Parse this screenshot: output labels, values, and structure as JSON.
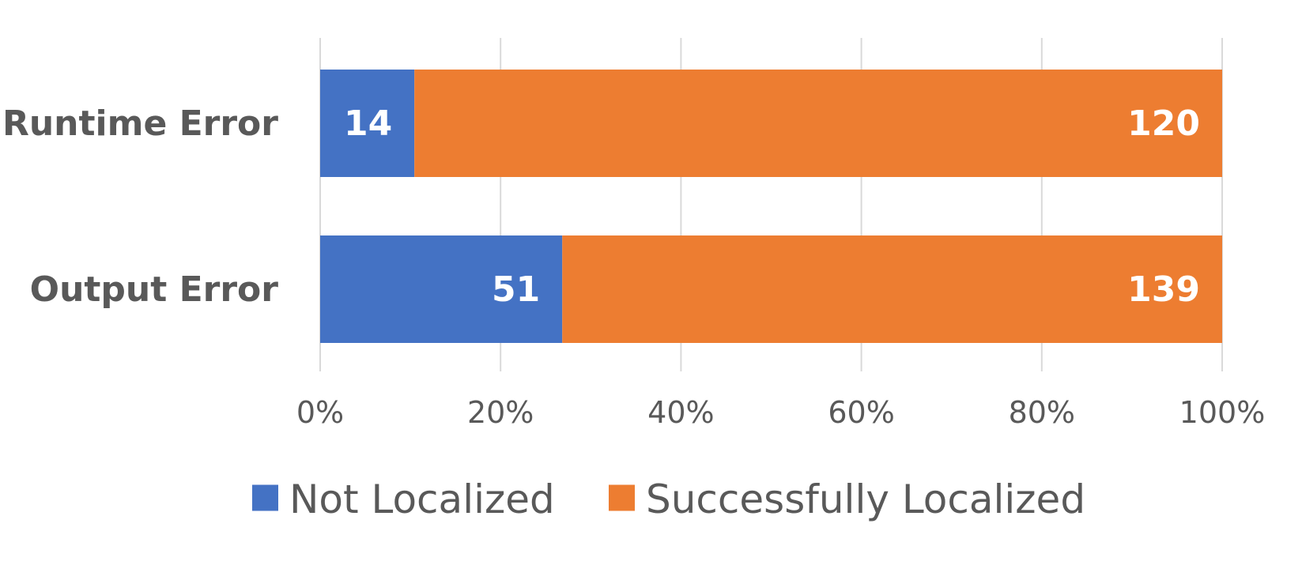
{
  "chart_data": {
    "type": "bar",
    "orientation": "horizontal",
    "stacked": "percent",
    "categories": [
      "Runtime Error",
      "Output Error"
    ],
    "series": [
      {
        "name": "Not Localized",
        "values": [
          14,
          51
        ],
        "color": "#4472C4"
      },
      {
        "name": "Successfully Localized",
        "values": [
          120,
          139
        ],
        "color": "#ED7D31"
      }
    ],
    "x_ticks": [
      "0%",
      "20%",
      "40%",
      "60%",
      "80%",
      "100%"
    ],
    "xlim": [
      0,
      100
    ],
    "grid": "vertical",
    "legend_position": "bottom"
  }
}
